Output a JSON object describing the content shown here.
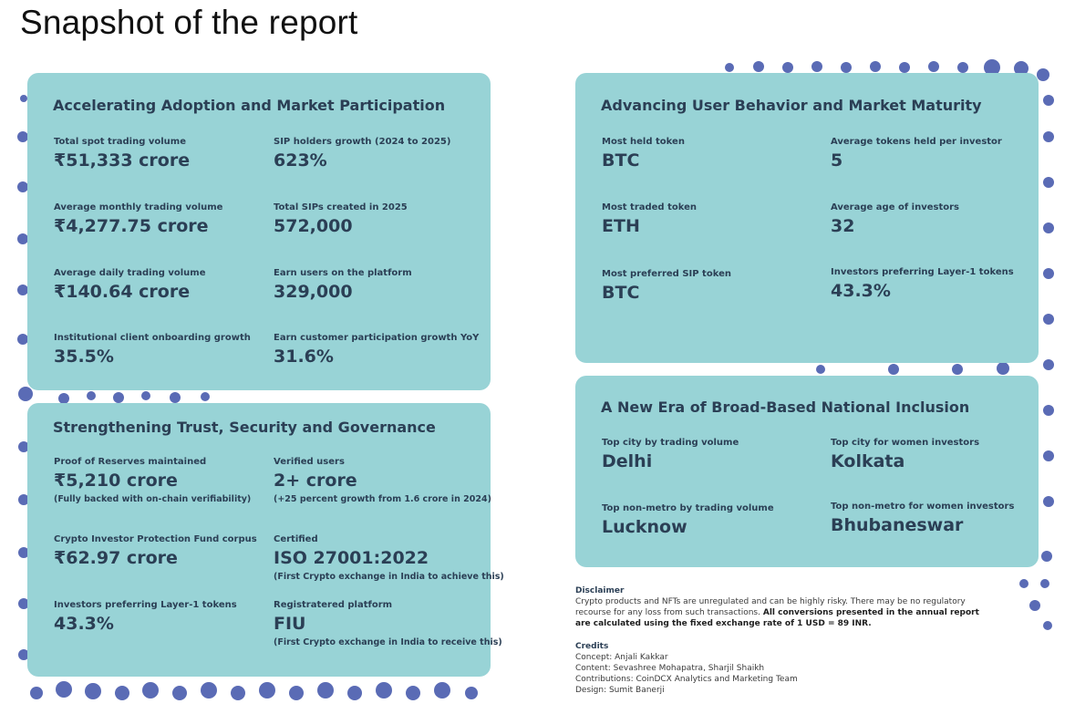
{
  "page": {
    "title": "Snapshot of the report"
  },
  "colors": {
    "card": "#98d3d6",
    "dot": "#5a6bb5",
    "text": "#2b3f55"
  },
  "cards": {
    "adoption": {
      "title": "Accelerating Adoption and Market Participation",
      "stats": [
        {
          "label": "Total spot trading volume",
          "value": "₹51,333 crore"
        },
        {
          "label": "SIP holders growth (2024 to 2025)",
          "value": "623%"
        },
        {
          "label": "Average monthly trading volume",
          "value": "₹4,277.75 crore"
        },
        {
          "label": "Total SIPs created in 2025",
          "value": "572,000"
        },
        {
          "label": "Average daily trading volume",
          "value": "₹140.64 crore"
        },
        {
          "label": "Earn users on the platform",
          "value": "329,000"
        },
        {
          "label": "Institutional client onboarding growth",
          "value": "35.5%"
        },
        {
          "label": "Earn customer participation growth YoY",
          "value": "31.6%"
        }
      ]
    },
    "trust": {
      "title": "Strengthening Trust, Security and Governance",
      "stats": [
        {
          "label": "Proof of Reserves maintained",
          "value": "₹5,210 crore",
          "note": "(Fully backed with on-chain verifiability)"
        },
        {
          "label": "Verified users",
          "value": "2+ crore",
          "note": "(+25 percent growth from 1.6 crore in 2024)"
        },
        {
          "label": "Crypto Investor Protection Fund corpus",
          "value": "₹62.97 crore"
        },
        {
          "label": "Certified",
          "value": "ISO 27001:2022",
          "note": "(First Crypto exchange in India to achieve this)"
        },
        {
          "label": "Investors preferring Layer-1 tokens",
          "value": "43.3%"
        },
        {
          "label": "Registratered platform",
          "value": "FIU",
          "note": "(First Crypto exchange in India to receive this)"
        }
      ]
    },
    "behavior": {
      "title": "Advancing User Behavior and Market Maturity",
      "stats": [
        {
          "label": "Most held token",
          "value": "BTC"
        },
        {
          "label": "Average tokens held per investor",
          "value": "5"
        },
        {
          "label": "Most traded token",
          "value": "ETH"
        },
        {
          "label": "Average age of investors",
          "value": "32"
        },
        {
          "label": "Most preferred SIP token",
          "value": "BTC"
        },
        {
          "label": "Investors preferring Layer-1 tokens",
          "value": "43.3%"
        }
      ]
    },
    "inclusion": {
      "title": "A New Era of Broad-Based National Inclusion",
      "stats": [
        {
          "label": "Top city by trading volume",
          "value": "Delhi"
        },
        {
          "label": "Top city for women investors",
          "value": "Kolkata"
        },
        {
          "label": "Top non-metro by trading volume",
          "value": "Lucknow"
        },
        {
          "label": "Top non-metro for women investors",
          "value": "Bhubaneswar"
        }
      ]
    }
  },
  "disclaimer": {
    "heading": "Disclaimer",
    "text": "Crypto products and NFTs are unregulated and can be highly risky. There may be no regulatory recourse for any loss from such transactions.",
    "bold": "All conversions presented in the annual report are calculated using the fixed exchange rate of 1 USD = 89 INR."
  },
  "credits": {
    "heading": "Credits",
    "lines": [
      "Concept: Anjali Kakkar",
      "Content: Sevashree Mohapatra, Sharjil Shaikh",
      "Contributions: CoinDCX Analytics and Marketing Team",
      "Design: Sumit Banerji"
    ]
  }
}
